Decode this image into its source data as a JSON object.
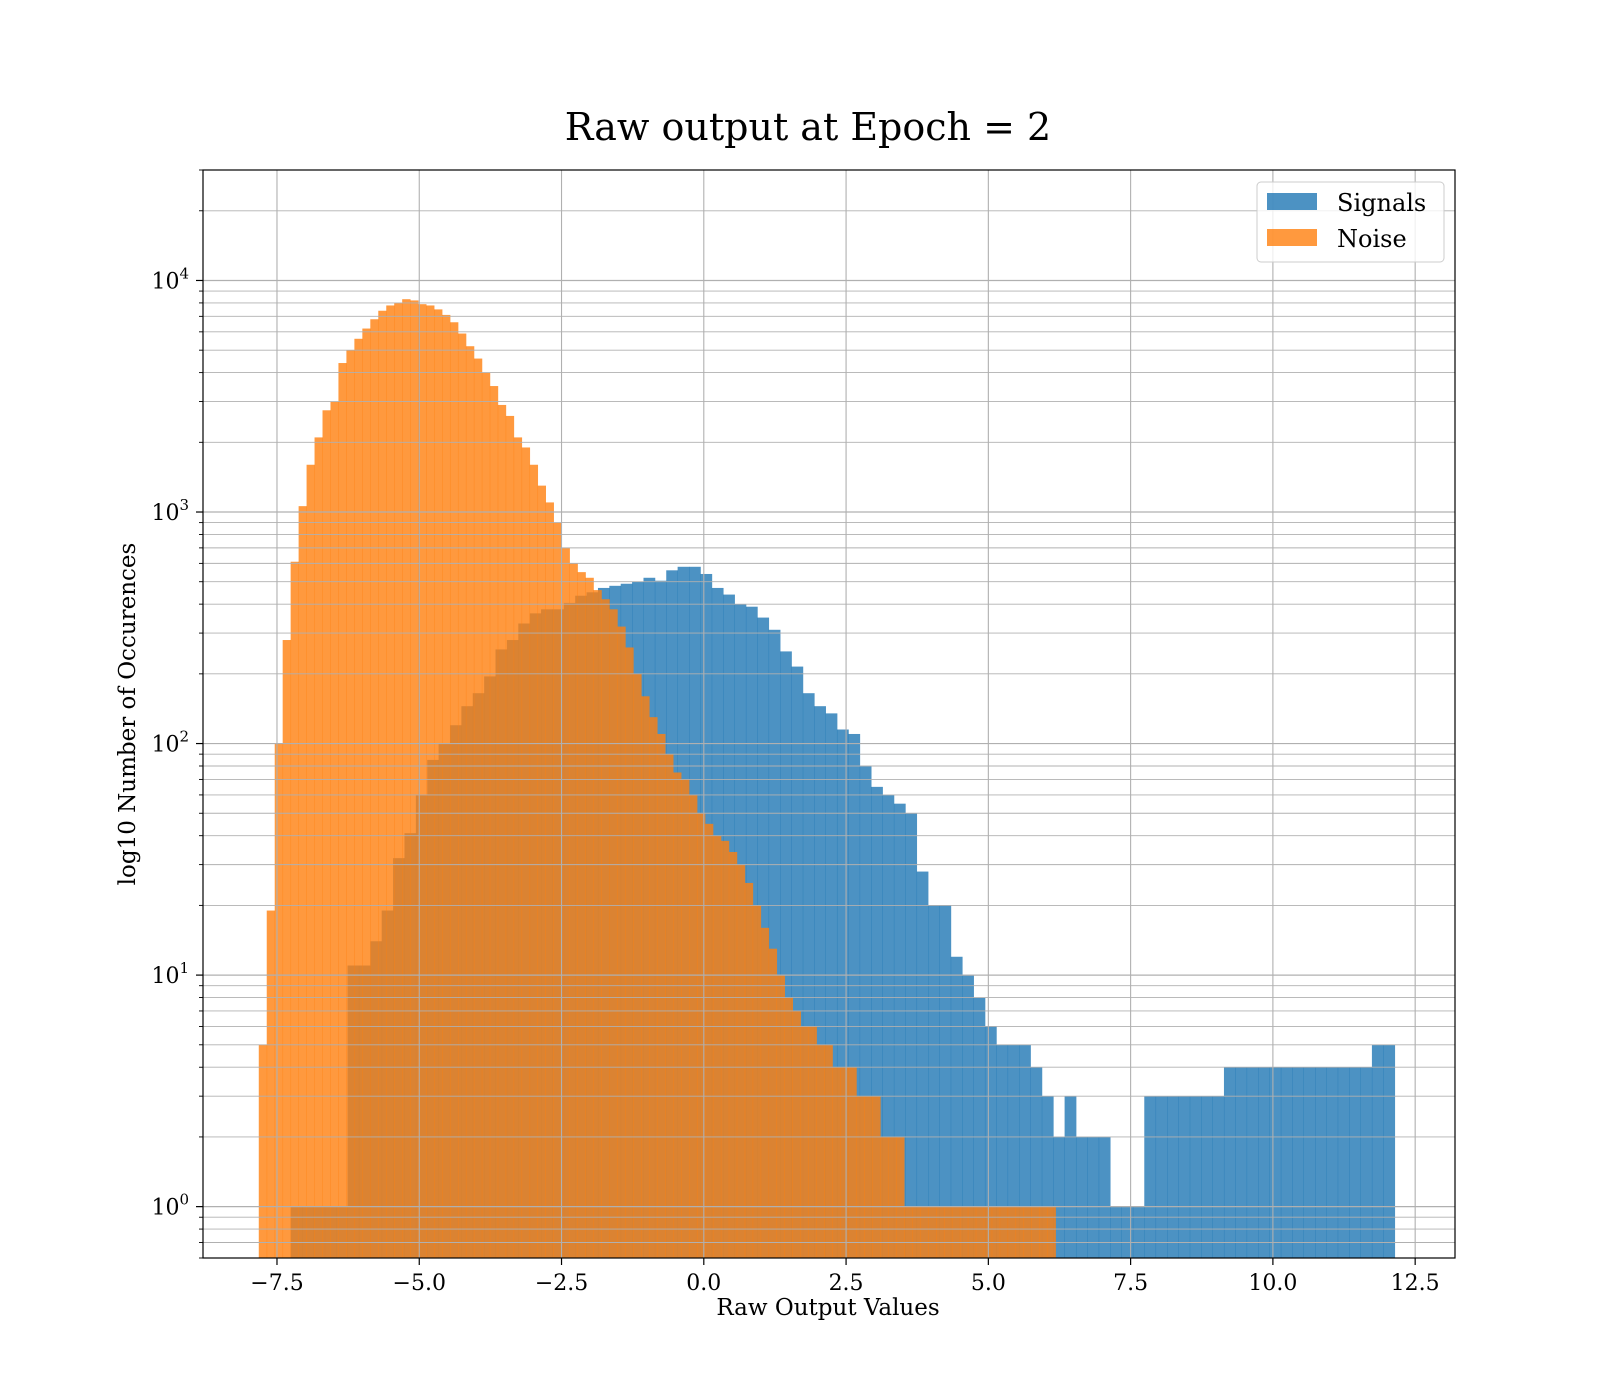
{
  "chart_data": {
    "type": "histogram",
    "title": "Raw output at Epoch = 2",
    "xlabel": "Raw Output Values",
    "ylabel": "log10 Number of Occurences",
    "xlim": [
      -8.8,
      13.2
    ],
    "ylim": [
      0.6,
      30000
    ],
    "yscale": "log",
    "grid": true,
    "legend_position": "top-right",
    "x_ticks": [
      -7.5,
      -5.0,
      -2.5,
      0.0,
      2.5,
      5.0,
      7.5,
      10.0,
      12.5
    ],
    "x_tick_labels": [
      "−7.5",
      "−5.0",
      "−2.5",
      "0.0",
      "2.5",
      "5.0",
      "7.5",
      "10.0",
      "12.5"
    ],
    "y_ticks": [
      1,
      10,
      100,
      1000,
      10000
    ],
    "y_tick_labels": [
      {
        "base": "10",
        "exp": "0"
      },
      {
        "base": "10",
        "exp": "1"
      },
      {
        "base": "10",
        "exp": "2"
      },
      {
        "base": "10",
        "exp": "3"
      },
      {
        "base": "10",
        "exp": "4"
      }
    ],
    "series": [
      {
        "name": "Signals",
        "color": "#1f77b4",
        "alpha": 0.8,
        "bin_start": -7.26,
        "bin_width": 0.2,
        "values": [
          1,
          1,
          1,
          1,
          1,
          11,
          11,
          14,
          19,
          32,
          41,
          60,
          85,
          100,
          120,
          145,
          165,
          195,
          255,
          280,
          330,
          365,
          380,
          380,
          405,
          435,
          450,
          470,
          480,
          490,
          500,
          520,
          505,
          560,
          580,
          580,
          540,
          470,
          440,
          400,
          390,
          350,
          310,
          250,
          215,
          165,
          145,
          135,
          115,
          110,
          80,
          65,
          60,
          55,
          50,
          28,
          20,
          20,
          12,
          10,
          8,
          6,
          5,
          5,
          5,
          4,
          3,
          2,
          3,
          2,
          2,
          2,
          1,
          1,
          1,
          3,
          3,
          3,
          3,
          3,
          3,
          3,
          4,
          4,
          4,
          4,
          4,
          4,
          4,
          4,
          4,
          4,
          4,
          4,
          4,
          5,
          5
        ]
      },
      {
        "name": "Noise",
        "color": "#ff7f0e",
        "alpha": 0.8,
        "bin_start": -7.82,
        "bin_width": 0.14,
        "values": [
          5,
          19,
          100,
          280,
          610,
          1060,
          1600,
          2100,
          2750,
          3000,
          4400,
          5000,
          5600,
          6200,
          6800,
          7400,
          7800,
          8000,
          8300,
          8200,
          7900,
          7800,
          7500,
          7100,
          6600,
          5900,
          5200,
          4600,
          4000,
          3500,
          2900,
          2600,
          2100,
          1900,
          1600,
          1300,
          1100,
          900,
          700,
          600,
          550,
          520,
          460,
          420,
          380,
          320,
          260,
          200,
          160,
          130,
          110,
          90,
          75,
          70,
          60,
          50,
          45,
          40,
          38,
          34,
          30,
          25,
          20,
          16,
          13,
          10,
          8,
          7,
          6,
          6,
          5,
          5,
          4,
          4,
          4,
          3,
          3,
          3,
          2,
          2,
          2,
          1,
          1,
          1,
          1,
          1,
          1,
          1,
          1,
          1,
          1,
          1,
          1,
          1,
          1,
          1,
          1,
          1,
          1,
          1
        ]
      }
    ]
  }
}
